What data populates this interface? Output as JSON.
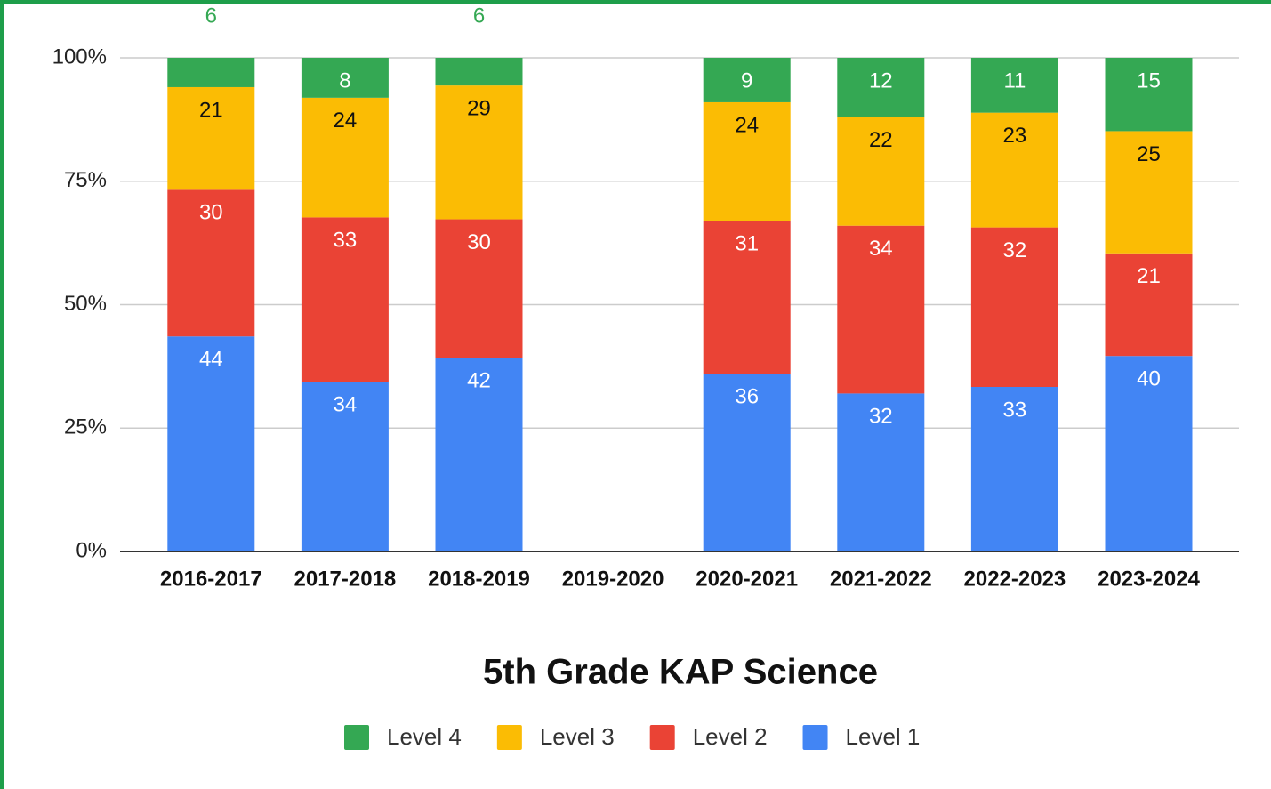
{
  "chart_data": {
    "type": "bar",
    "stacking": "percent",
    "title": "5th Grade KAP Science",
    "categories": [
      "2016-2017",
      "2017-2018",
      "2018-2019",
      "2019-2020",
      "2020-2021",
      "2021-2022",
      "2022-2023",
      "2023-2024"
    ],
    "series": [
      {
        "name": "Level 4",
        "color": "#34a853",
        "values": [
          6,
          8,
          6,
          null,
          9,
          12,
          11,
          15
        ]
      },
      {
        "name": "Level 3",
        "color": "#fbbc04",
        "values": [
          21,
          24,
          29,
          null,
          24,
          22,
          23,
          25
        ]
      },
      {
        "name": "Level 2",
        "color": "#ea4335",
        "values": [
          30,
          33,
          30,
          null,
          31,
          34,
          32,
          21
        ]
      },
      {
        "name": "Level 1",
        "color": "#4285f4",
        "values": [
          44,
          34,
          42,
          null,
          36,
          32,
          33,
          40
        ]
      }
    ],
    "ylim": [
      0,
      100
    ],
    "yticks": [
      {
        "value": 0,
        "label": "0%"
      },
      {
        "value": 25,
        "label": "25%"
      },
      {
        "value": 50,
        "label": "50%"
      },
      {
        "value": 75,
        "label": "75%"
      },
      {
        "value": 100,
        "label": "100%"
      }
    ],
    "grid": true,
    "legend": "bottom"
  }
}
